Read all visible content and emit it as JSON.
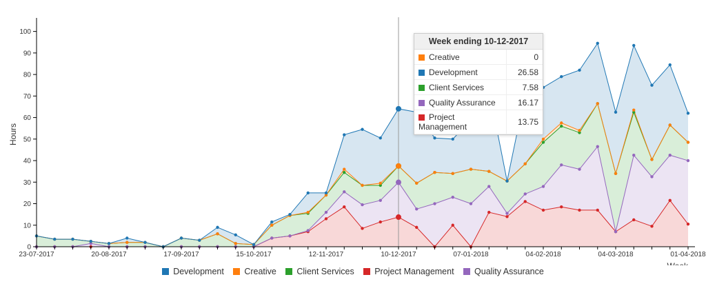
{
  "chart_data": {
    "type": "area",
    "stacked": true,
    "xlabel": "Week",
    "ylabel": "Hours",
    "ylim": [
      0,
      105
    ],
    "yticks": [
      0,
      10,
      20,
      30,
      40,
      50,
      60,
      70,
      80,
      90,
      100
    ],
    "xtick_labels": [
      "23-07-2017",
      "20-08-2017",
      "17-09-2017",
      "15-10-2017",
      "12-11-2017",
      "10-12-2017",
      "07-01-2018",
      "04-02-2018",
      "04-03-2018",
      "01-04-2018"
    ],
    "x": [
      "23-07-2017",
      "30-07-2017",
      "06-08-2017",
      "13-08-2017",
      "20-08-2017",
      "27-08-2017",
      "03-09-2017",
      "10-09-2017",
      "17-09-2017",
      "24-09-2017",
      "01-10-2017",
      "08-10-2017",
      "15-10-2017",
      "22-10-2017",
      "29-10-2017",
      "05-11-2017",
      "12-11-2017",
      "19-11-2017",
      "26-11-2017",
      "03-12-2017",
      "10-12-2017",
      "17-12-2017",
      "24-12-2017",
      "31-12-2017",
      "07-01-2018",
      "14-01-2018",
      "21-01-2018",
      "28-01-2018",
      "04-02-2018",
      "11-02-2018",
      "18-02-2018",
      "25-02-2018",
      "04-03-2018",
      "11-03-2018",
      "18-03-2018",
      "25-03-2018",
      "01-04-2018"
    ],
    "series": [
      {
        "name": "Project Management",
        "color": "#d62728",
        "values": [
          0,
          0,
          0,
          0,
          0,
          0,
          0,
          0,
          0,
          0,
          0,
          0,
          0,
          4,
          5,
          7,
          13,
          18.5,
          8.5,
          11.5,
          13.75,
          9,
          0,
          10,
          0,
          16,
          14,
          21,
          17,
          18.5,
          17,
          17,
          7,
          12.5,
          9.5,
          21.5,
          10.5
        ]
      },
      {
        "name": "Quality Assurance",
        "color": "#9467bd",
        "values": [
          0,
          0,
          0,
          1.5,
          0,
          0,
          0,
          0,
          0,
          0,
          0,
          0,
          0,
          0,
          0,
          0.5,
          3,
          7,
          11,
          10,
          16.17,
          8.5,
          20,
          13,
          20,
          12,
          1.5,
          3.5,
          11,
          19.5,
          19,
          29.5,
          0,
          30,
          23,
          21,
          29.5
        ]
      },
      {
        "name": "Client Services",
        "color": "#2ca02c",
        "values": [
          5,
          3.5,
          3.5,
          1,
          1.5,
          2,
          2,
          0,
          4,
          3,
          6,
          1.5,
          1,
          6,
          9.5,
          8,
          8,
          9,
          9,
          7,
          7.58,
          12,
          14.5,
          11,
          16,
          7,
          15,
          14,
          20.5,
          18,
          17,
          20,
          27,
          20,
          8,
          14,
          8.5
        ]
      },
      {
        "name": "Creative",
        "color": "#ff7f0e",
        "values": [
          0,
          0,
          0,
          0,
          0,
          0,
          0,
          0,
          0,
          0,
          0,
          0,
          0,
          0,
          0,
          0.5,
          0,
          1.5,
          0,
          1,
          0,
          0,
          0,
          0,
          0,
          0,
          0,
          0,
          1.5,
          1.5,
          1,
          0,
          0,
          1,
          0,
          0,
          0
        ]
      },
      {
        "name": "Development",
        "color": "#1f77b4",
        "values": [
          0,
          0,
          0,
          0,
          0,
          2,
          0,
          0,
          0,
          0,
          3,
          4,
          0,
          1.5,
          0.5,
          9,
          1,
          16,
          26,
          21,
          26.58,
          33,
          16,
          16,
          23,
          38,
          0,
          32.5,
          24,
          21.5,
          28,
          28,
          28.5,
          30,
          34.5,
          28,
          13.5
        ]
      }
    ],
    "legend": [
      "Development",
      "Creative",
      "Client Services",
      "Project Management",
      "Quality Assurance"
    ],
    "legend_placement": "bottom",
    "grid": false
  },
  "tooltip": {
    "title": "Week ending 10-12-2017",
    "rows": [
      {
        "label": "Creative",
        "value": "0",
        "color": "#ff7f0e"
      },
      {
        "label": "Development",
        "value": "26.58",
        "color": "#1f77b4"
      },
      {
        "label": "Client Services",
        "value": "7.58",
        "color": "#2ca02c"
      },
      {
        "label": "Quality Assurance",
        "value": "16.17",
        "color": "#9467bd"
      },
      {
        "label": "Project Management",
        "value": "13.75",
        "color": "#d62728"
      }
    ]
  },
  "legend_items": [
    {
      "label": "Development",
      "color": "#1f77b4"
    },
    {
      "label": "Creative",
      "color": "#ff7f0e"
    },
    {
      "label": "Client Services",
      "color": "#2ca02c"
    },
    {
      "label": "Project Management",
      "color": "#d62728"
    },
    {
      "label": "Quality Assurance",
      "color": "#9467bd"
    }
  ],
  "hover_index": 20
}
